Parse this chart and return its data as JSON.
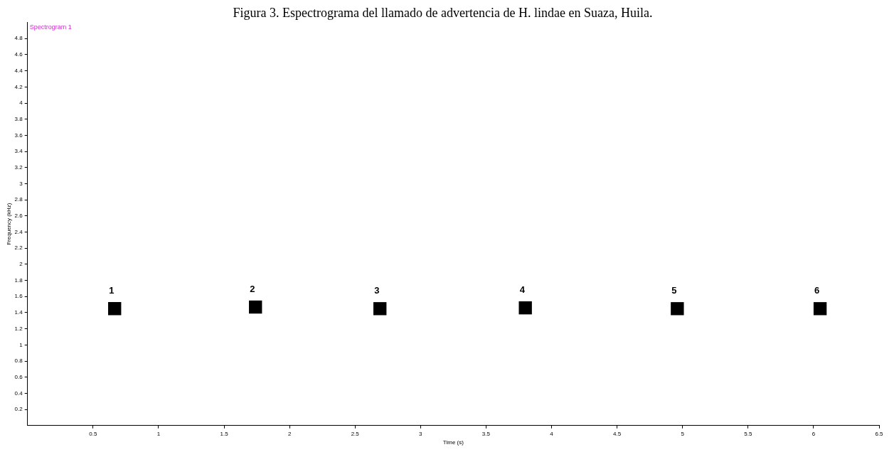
{
  "chart_data": {
    "type": "scatter",
    "title": "Figura 3. Espectrograma del llamado de advertencia de H. lindae en Suaza, Huila.",
    "xlabel": "Time (s)",
    "ylabel": "Frequency (kHz)",
    "x": [
      0.665,
      1.74,
      2.69,
      3.8,
      4.96,
      6.05
    ],
    "values": [
      1.45,
      1.47,
      1.45,
      1.46,
      1.45,
      1.45
    ],
    "color": "#000000",
    "marker": "square",
    "grid": false,
    "legend": false,
    "xlim": [
      0,
      6.5
    ],
    "xticks": [
      0.5,
      1,
      1.5,
      2,
      2.5,
      3,
      3.5,
      4,
      4.5,
      5,
      5.5,
      6,
      6.5
    ],
    "ylim": [
      0,
      5
    ],
    "yticks": [
      0.2,
      0.4,
      0.6,
      0.8,
      1,
      1.2,
      1.4,
      1.6,
      1.8,
      2,
      2.2,
      2.4,
      2.6,
      2.8,
      3,
      3.2,
      3.4,
      3.6,
      3.8,
      4,
      4.2,
      4.4,
      4.6,
      4.8
    ],
    "annotations": [
      "Spectrogram 1",
      "1",
      "2",
      "3",
      "4",
      "5",
      "6"
    ]
  }
}
